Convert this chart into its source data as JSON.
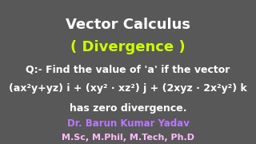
{
  "background_color": "#585858",
  "title1": "Vector Calculus",
  "title1_color": "#ffffff",
  "title1_fontsize": 13,
  "title2": "( Divergence )",
  "title2_color": "#ccff00",
  "title2_fontsize": 13,
  "line1": "Q:- Find the value of 'a' if the vector",
  "line1_color": "#ffffff",
  "line1_fontsize": 9,
  "line2": "(ax²y+yz) i + (xy² · xz²) j + (2xyz · 2x²y²) k",
  "line2_color": "#ffffff",
  "line2_fontsize": 9,
  "line3": "has zero divergence.",
  "line3_color": "#ffffff",
  "line3_fontsize": 9,
  "author": "Dr. Barun Kumar Yadav",
  "author_color": "#bb77ff",
  "author_fontsize": 8.5,
  "qualifications": "M.Sc, M.Phil, M.Tech, Ph.D",
  "qualifications_color": "#ffbbff",
  "qualifications_fontsize": 8.0
}
